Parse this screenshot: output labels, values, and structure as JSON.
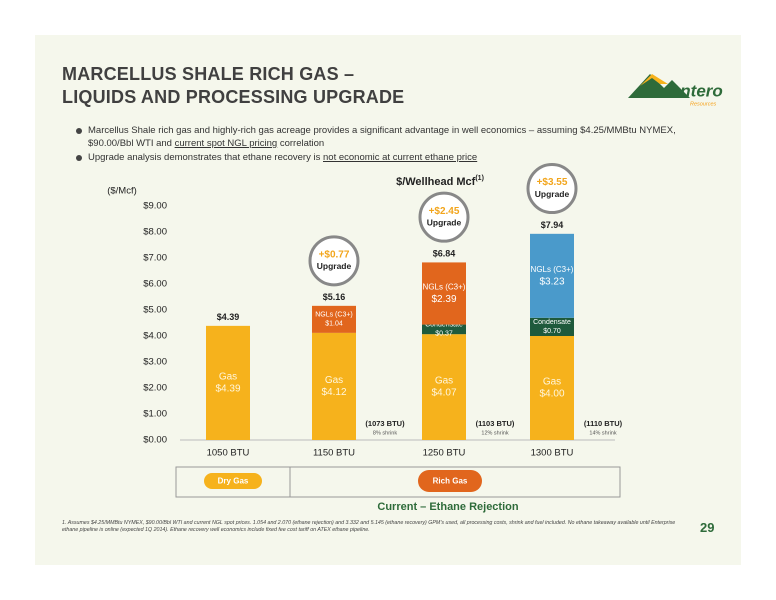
{
  "header": {
    "title_line1": "MARCELLUS SHALE RICH GAS –",
    "title_line2": "LIQUIDS AND PROCESSING UPGRADE"
  },
  "logo": {
    "name": "Antero",
    "tagline": "Resources"
  },
  "bullets": [
    [
      "Marcellus Shale rich gas and highly-rich gas acreage provides a significant advantage in well economics – assuming $4.25/MMBtu NYMEX, $90.00/Bbl WTI and ",
      "current spot NGL pricing",
      " correlation"
    ],
    [
      "Upgrade analysis demonstrates that ethane recovery is ",
      "not economic at current ethane price"
    ]
  ],
  "chart_data": {
    "type": "stacked_bar",
    "title": "$/Wellhead Mcf",
    "title_superscript": "(1)",
    "y_label": "($/Mcf)",
    "categories": [
      "1050 BTU",
      "1150 BTU",
      "1250 BTU",
      "1300 BTU"
    ],
    "series": [
      {
        "name": "Gas",
        "color": "#f6b21c",
        "label_color": "#fff6dc",
        "values": [
          4.39,
          4.12,
          4.07,
          4.0
        ],
        "value_labels": [
          "$4.39",
          "$4.12",
          "$4.07",
          "$4.00"
        ]
      },
      {
        "name": "Condensate",
        "color": "#1e5a3c",
        "label_color": "#ffffff",
        "values": [
          null,
          null,
          0.37,
          0.7
        ],
        "value_labels": [
          null,
          null,
          "$0.37",
          "$0.70"
        ]
      },
      {
        "name": "NGLs (C3+)",
        "colors": [
          "#e1661d",
          "#e1661d",
          "#e1661d",
          "#4a9acb"
        ],
        "label_color": "#ffffff",
        "values": [
          null,
          1.04,
          2.39,
          3.23
        ],
        "value_labels": [
          null,
          "$1.04",
          "$2.39",
          "$3.23"
        ]
      }
    ],
    "totals": [
      4.39,
      5.16,
      6.84,
      7.94
    ],
    "total_labels": [
      "$4.39",
      "$5.16",
      "$6.84",
      "$7.94"
    ],
    "upgrades": [
      null,
      "+$0.77",
      "+$2.45",
      "+$3.55"
    ],
    "upgrade_text": "Upgrade",
    "shrink": [
      null,
      {
        "btu": "(1073 BTU)",
        "pct": "8% shrink"
      },
      {
        "btu": "(1103 BTU)",
        "pct": "12% shrink"
      },
      {
        "btu": "(1110 BTU)",
        "pct": "14% shrink"
      }
    ],
    "ylim": [
      0,
      9
    ],
    "yticks": [
      {
        "value": 0,
        "label": "$0.00"
      },
      {
        "value": 1,
        "label": "$1.00"
      },
      {
        "value": 2,
        "label": "$2.00"
      },
      {
        "value": 3,
        "label": "$3.00"
      },
      {
        "value": 4,
        "label": "$4.00"
      },
      {
        "value": 5,
        "label": "$5.00"
      },
      {
        "value": 6,
        "label": "$6.00"
      },
      {
        "value": 7,
        "label": "$7.00"
      },
      {
        "value": 8,
        "label": "$8.00"
      },
      {
        "value": 9,
        "label": "$9.00"
      }
    ],
    "grid": false
  },
  "segments": {
    "dry": "Dry Gas",
    "rich": "Rich Gas",
    "caption": "Current – Ethane Rejection"
  },
  "footnote": "1.  Assumes $4.25/MMBtu NYMEX, $90.00/Bbl WTI and current NGL spot prices.  1.054 and 2.070 (ethane rejection) and 3.332 and 5.145 (ethane recovery) GPM’s used, all processing costs, shrink and fuel included.  No ethane takeaway available until Enterprise ethane pipeline is online (expected 1Q 2014). Ethane recovery well economics include fixed fee cost tariff on ATEX ethane pipeline.",
  "page_number": "29"
}
